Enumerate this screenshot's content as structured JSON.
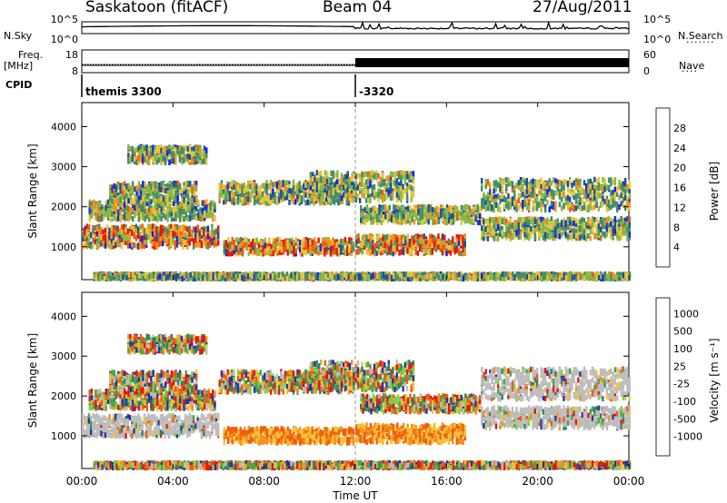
{
  "header": {
    "station": "Saskatoon (fitACF)",
    "beam": "Beam 04",
    "date": "27/Aug/2011"
  },
  "side_labels": {
    "nsky": "N.Sky",
    "nsearch": "N.Search",
    "freq_line1": "Freq.",
    "freq_line2": "[MHz]",
    "nave": "Nave",
    "cpid": "CPID"
  },
  "cpid_segments": [
    {
      "label": "themis 3300",
      "start_hour": 0
    },
    {
      "label": "-3320",
      "start_hour": 12
    }
  ],
  "chart_data": [
    {
      "type": "line",
      "name": "noise",
      "left_axis": {
        "label": "N.Sky",
        "ticks": [
          "10^5",
          "10^0"
        ]
      },
      "right_axis": {
        "label": "N.Search",
        "ticks": [
          "10^5",
          "10^0"
        ]
      },
      "xlim": [
        0,
        24
      ]
    },
    {
      "type": "line",
      "name": "frequency-nave",
      "left_axis": {
        "label": "Freq. [MHz]",
        "ticks": [
          "18",
          "8"
        ]
      },
      "right_axis": {
        "label": "Nave",
        "ticks": [
          "60",
          "0"
        ]
      },
      "xlim": [
        0,
        24
      ],
      "nave_step": [
        {
          "hour": 0,
          "level": 0.2
        },
        {
          "hour": 12,
          "level": 0.55
        }
      ]
    },
    {
      "type": "heatmap",
      "name": "power",
      "ylabel": "Slant Range [km]",
      "ylim": [
        180,
        4600
      ],
      "yticks": [
        "1000",
        "2000",
        "3000",
        "4000"
      ],
      "xlim": [
        0,
        24
      ],
      "colorbar": {
        "label": "Power [dB]",
        "ticks": [
          "4",
          "8",
          "12",
          "16",
          "20",
          "24",
          "28"
        ],
        "colors": [
          "#1a1aff",
          "#1c4f9e",
          "#3f8f6f",
          "#88b84a",
          "#e8c83a",
          "#f7931e",
          "#f25a10",
          "#e8140c"
        ]
      }
    },
    {
      "type": "heatmap",
      "name": "velocity",
      "ylabel": "Slant Range [km]",
      "ylim": [
        180,
        4600
      ],
      "yticks": [
        "1000",
        "2000",
        "3000",
        "4000"
      ],
      "xlim": [
        0,
        24
      ],
      "colorbar": {
        "label": "Velocity [m s⁻¹]",
        "ticks": [
          "1000",
          "500",
          "100",
          "25",
          "-25",
          "-100",
          "-500",
          "-1000"
        ],
        "colors": [
          "#2233aa",
          "#2e7f6c",
          "#4ba64a",
          "#88d040",
          "#bebebe",
          "#f3c43a",
          "#f3901c",
          "#f25a10",
          "#e8140c"
        ]
      }
    }
  ],
  "x_axis": {
    "title": "Time UT",
    "ticks": [
      "00:00",
      "04:00",
      "08:00",
      "12:00",
      "16:00",
      "20:00",
      "00:00"
    ]
  }
}
